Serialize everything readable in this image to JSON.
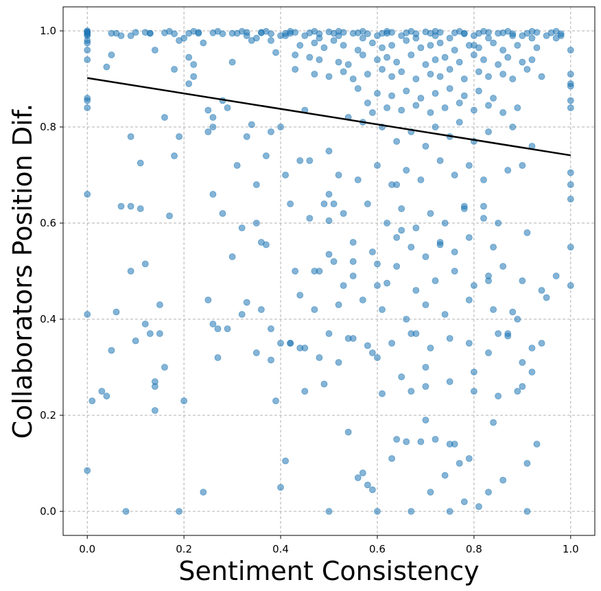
{
  "chart_data": {
    "type": "scatter",
    "title": "",
    "xlabel": "Sentiment Consistency",
    "ylabel": "Collaborators Position Dif.",
    "xlim": [
      -0.05,
      1.05
    ],
    "ylim": [
      -0.05,
      1.05
    ],
    "xticks": [
      "0.0",
      "0.2",
      "0.4",
      "0.6",
      "0.8",
      "1.0"
    ],
    "yticks": [
      "0.0",
      "0.2",
      "0.4",
      "0.6",
      "0.8",
      "1.0"
    ],
    "grid": true,
    "colors": {
      "points": "#1f77b4",
      "trend": "#000000"
    },
    "trend_line": {
      "x": [
        0.0,
        1.0
      ],
      "y": [
        0.902,
        0.741
      ]
    },
    "points_x": [
      0.0,
      0.0,
      0.0,
      0.0,
      0.0,
      0.0,
      0.0,
      0.0,
      0.0,
      0.0,
      0.0,
      0.0,
      0.0,
      0.0,
      0.0,
      0.07,
      0.08,
      0.09,
      0.09,
      0.11,
      0.12,
      0.13,
      0.14,
      0.15,
      0.16,
      0.17,
      0.18,
      0.19,
      0.2,
      0.21,
      0.22,
      0.24,
      0.25,
      0.25,
      0.25,
      0.26,
      0.26,
      0.27,
      0.28,
      0.29,
      0.3,
      0.32,
      0.33,
      0.34,
      0.35,
      0.36,
      0.37,
      0.38,
      0.39,
      0.4,
      0.41,
      0.42,
      0.43,
      0.44,
      0.45,
      0.46,
      0.47,
      0.48,
      0.49,
      0.5,
      0.5,
      0.5,
      0.5,
      0.51,
      0.52,
      0.53,
      0.54,
      0.55,
      0.56,
      0.57,
      0.58,
      0.58,
      0.59,
      0.6,
      0.6,
      0.61,
      0.62,
      0.63,
      0.64,
      0.64,
      0.65,
      0.66,
      0.67,
      0.67,
      0.68,
      0.69,
      0.7,
      0.7,
      0.71,
      0.72,
      0.73,
      0.74,
      0.75,
      0.75,
      0.76,
      0.77,
      0.78,
      0.78,
      0.79,
      0.8,
      0.8,
      0.81,
      0.82,
      0.83,
      0.83,
      0.84,
      0.85,
      0.86,
      0.87,
      0.88,
      0.89,
      0.9,
      0.91,
      0.91,
      0.92,
      0.93,
      0.94,
      0.95,
      1.0,
      1.0,
      1.0,
      1.0,
      1.0,
      1.0,
      1.0,
      1.0,
      1.0,
      1.0,
      1.0,
      0.04,
      0.05,
      0.06,
      0.1,
      0.12,
      0.14,
      0.2,
      0.23,
      0.33,
      0.36,
      0.4,
      0.42,
      0.45,
      0.48,
      0.5,
      0.52,
      0.55,
      0.57,
      0.6,
      0.62,
      0.65,
      0.68,
      0.7,
      0.72,
      0.75,
      0.78,
      0.8,
      0.83,
      0.85,
      0.88,
      0.9,
      0.92,
      0.95,
      0.97,
      0.98,
      0.3,
      0.35,
      0.38,
      0.41,
      0.44,
      0.47,
      0.49,
      0.51,
      0.53,
      0.56,
      0.59,
      0.61,
      0.63,
      0.66,
      0.69,
      0.71,
      0.73,
      0.76,
      0.79,
      0.81,
      0.84,
      0.86,
      0.89,
      0.93,
      0.34,
      0.39,
      0.43,
      0.46,
      0.48,
      0.52,
      0.54,
      0.57,
      0.6,
      0.62,
      0.64,
      0.67,
      0.7,
      0.72,
      0.74,
      0.77,
      0.8,
      0.82,
      0.85,
      0.87,
      0.9,
      0.92,
      0.43,
      0.47,
      0.5,
      0.53,
      0.55,
      0.58,
      0.61,
      0.63,
      0.65,
      0.68,
      0.71,
      0.73,
      0.75,
      0.78,
      0.81,
      0.83,
      0.86,
      0.88,
      0.91,
      0.94,
      0.56,
      0.6,
      0.63,
      0.66,
      0.69,
      0.72,
      0.75,
      0.78,
      0.81,
      0.84,
      0.58,
      0.62,
      0.65,
      0.68,
      0.71,
      0.74,
      0.77,
      0.8,
      0.83,
      0.86,
      0.89,
      0.0,
      0.04,
      0.07,
      0.09,
      0.13,
      0.19,
      0.24,
      0.26,
      0.33,
      0.4,
      0.45,
      0.5,
      0.54,
      0.57,
      0.59,
      0.61,
      0.64,
      0.67,
      0.7,
      0.72,
      0.75,
      0.77,
      0.8,
      0.83,
      0.88,
      0.92,
      0.14,
      0.16,
      0.19,
      0.22,
      0.26,
      0.29,
      0.31,
      0.37,
      0.42,
      0.44,
      0.52,
      0.56,
      0.6,
      0.63,
      0.66,
      0.69,
      0.73,
      0.76,
      0.79,
      0.82,
      0.87,
      0.9,
      0.05,
      0.09,
      0.11,
      0.14,
      0.18,
      0.21,
      0.28,
      0.35,
      0.38,
      0.41,
      0.46,
      0.49,
      0.53,
      0.58,
      0.62,
      0.65,
      0.68,
      0.71,
      0.74,
      0.78,
      0.82,
      0.85,
      0.91,
      0.55,
      0.59,
      0.64,
      0.67,
      0.7,
      0.73,
      0.76,
      0.79,
      0.84,
      0.3,
      0.36,
      0.4,
      0.44,
      0.48,
      0.51,
      0.55,
      0.6,
      0.64,
      0.68,
      0.72,
      0.76,
      0.8,
      0.83,
      0.86,
      0.9,
      0.94,
      0.97,
      0.47,
      0.52,
      0.57,
      0.61,
      0.66,
      0.7,
      0.74,
      0.79,
      0.84,
      0.89,
      0.15,
      0.27,
      0.32,
      0.35,
      0.38,
      0.42,
      0.45,
      0.5,
      0.54,
      0.59,
      0.63,
      0.67,
      0.71,
      0.75,
      0.79,
      0.83,
      0.87,
      0.92,
      0.55,
      0.6,
      0.65,
      0.7,
      0.75,
      0.8,
      0.85,
      0.9,
      0.01,
      0.03,
      0.06,
      0.1,
      0.13,
      0.16,
      0.18,
      0.21,
      0.23,
      0.26,
      0.28,
      0.31,
      0.33,
      0.36,
      0.38,
      0.41,
      0.43,
      0.46,
      0.48,
      0.51,
      0.53,
      0.56,
      0.58,
      0.61,
      0.63,
      0.66,
      0.68,
      0.71,
      0.73,
      0.76,
      0.78,
      0.81,
      0.83,
      0.86,
      0.88,
      0.91,
      0.93,
      0.96,
      0.98,
      0.05,
      0.12,
      0.17,
      0.22,
      0.27,
      0.32,
      0.37,
      0.42,
      0.47,
      0.52,
      0.57,
      0.62,
      0.67,
      0.72,
      0.77,
      0.82,
      0.87,
      0.92,
      0.97
    ],
    "points_y": [
      1.0,
      0.99,
      0.98,
      0.96,
      0.94,
      0.86,
      0.84,
      0.66,
      0.41,
      0.085,
      0.995,
      0.998,
      0.993,
      0.975,
      0.997,
      0.635,
      0.0,
      0.78,
      0.635,
      0.725,
      0.515,
      0.37,
      0.26,
      0.37,
      0.3,
      0.615,
      0.92,
      0.0,
      0.23,
      0.945,
      0.905,
      0.04,
      0.44,
      0.835,
      0.79,
      0.66,
      0.39,
      0.32,
      0.855,
      0.38,
      0.935,
      0.59,
      0.435,
      0.805,
      0.68,
      0.56,
      0.555,
      0.315,
      0.23,
      0.05,
      0.105,
      0.35,
      0.5,
      0.34,
      0.25,
      0.73,
      0.42,
      0.32,
      0.265,
      0.0,
      0.535,
      0.605,
      0.66,
      0.64,
      0.31,
      0.47,
      0.165,
      0.52,
      0.07,
      0.08,
      0.345,
      0.055,
      0.045,
      0.0,
      0.515,
      0.245,
      0.475,
      0.11,
      0.15,
      0.68,
      0.585,
      0.145,
      0.0,
      0.25,
      0.37,
      0.145,
      0.3,
      0.19,
      0.04,
      0.15,
      0.555,
      0.075,
      0.14,
      0.0,
      0.14,
      0.1,
      0.02,
      0.635,
      0.11,
      0.97,
      0.29,
      0.01,
      0.635,
      0.04,
      0.48,
      0.185,
      0.37,
      0.065,
      0.365,
      0.415,
      0.25,
      0.31,
      0.1,
      0.0,
      0.29,
      0.14,
      0.35,
      0.445,
      0.47,
      0.55,
      0.65,
      0.68,
      0.705,
      0.84,
      0.855,
      0.885,
      0.89,
      0.91,
      0.96,
      0.24,
      0.335,
      0.415,
      0.355,
      0.39,
      0.21,
      0.985,
      0.995,
      0.99,
      0.997,
      0.99,
      0.995,
      0.99,
      0.985,
      0.998,
      0.99,
      0.995,
      0.985,
      0.99,
      0.995,
      0.99,
      0.985,
      0.998,
      0.99,
      0.985,
      0.995,
      0.99,
      0.985,
      0.995,
      0.99,
      0.99,
      0.985,
      0.99,
      0.985,
      0.99,
      0.995,
      0.985,
      0.98,
      0.99,
      0.97,
      0.975,
      0.965,
      0.98,
      0.97,
      0.96,
      0.975,
      0.965,
      0.97,
      0.98,
      0.965,
      0.97,
      0.975,
      0.96,
      0.97,
      0.965,
      0.975,
      0.96,
      0.97,
      0.965,
      0.98,
      0.955,
      0.95,
      0.945,
      0.94,
      0.935,
      0.93,
      0.95,
      0.94,
      0.945,
      0.935,
      0.95,
      0.93,
      0.94,
      0.945,
      0.935,
      0.95,
      0.94,
      0.93,
      0.945,
      0.935,
      0.94,
      0.92,
      0.91,
      0.905,
      0.915,
      0.9,
      0.91,
      0.92,
      0.905,
      0.915,
      0.9,
      0.91,
      0.905,
      0.92,
      0.9,
      0.915,
      0.905,
      0.91,
      0.9,
      0.92,
      0.905,
      0.88,
      0.87,
      0.865,
      0.875,
      0.86,
      0.87,
      0.88,
      0.865,
      0.875,
      0.86,
      0.85,
      0.84,
      0.835,
      0.845,
      0.83,
      0.84,
      0.85,
      0.835,
      0.845,
      0.83,
      0.84,
      0.855,
      0.925,
      0.99,
      0.99,
      0.995,
      0.98,
      0.975,
      0.82,
      0.78,
      0.8,
      0.835,
      0.75,
      0.82,
      0.81,
      0.83,
      0.8,
      0.77,
      0.79,
      0.76,
      0.8,
      0.78,
      0.81,
      0.77,
      0.79,
      0.8,
      0.76,
      0.96,
      0.82,
      0.78,
      0.93,
      0.8,
      0.84,
      0.72,
      0.74,
      0.64,
      0.73,
      0.7,
      0.69,
      0.72,
      0.68,
      0.71,
      0.69,
      0.73,
      0.7,
      0.72,
      0.69,
      0.71,
      0.72,
      0.95,
      0.5,
      0.63,
      0.27,
      0.74,
      0.89,
      0.62,
      0.6,
      0.79,
      0.7,
      0.61,
      0.64,
      0.62,
      0.64,
      0.6,
      0.63,
      0.59,
      0.62,
      0.6,
      0.63,
      0.61,
      0.6,
      0.58,
      0.56,
      0.54,
      0.57,
      0.55,
      0.53,
      0.56,
      0.54,
      0.57,
      0.55,
      0.53,
      0.42,
      0.35,
      0.45,
      0.5,
      0.52,
      0.49,
      0.47,
      0.51,
      0.46,
      0.48,
      0.5,
      0.47,
      0.49,
      0.51,
      0.48,
      0.46,
      0.49,
      0.5,
      0.43,
      0.44,
      0.42,
      0.4,
      0.43,
      0.41,
      0.44,
      0.42,
      0.4,
      0.43,
      0.38,
      0.41,
      0.33,
      0.38,
      0.35,
      0.34,
      0.37,
      0.36,
      0.33,
      0.35,
      0.37,
      0.34,
      0.36,
      0.35,
      0.33,
      0.37,
      0.34,
      0.36,
      0.32,
      0.28,
      0.26,
      0.27,
      0.25,
      0.24,
      0.26,
      0.23,
      0.25,
      0.995,
      0.997,
      0.995,
      0.996,
      0.994,
      0.995,
      0.997,
      0.996,
      0.994,
      0.995,
      0.997,
      0.996,
      0.994,
      0.995,
      0.997,
      0.996,
      0.994,
      0.995,
      0.997,
      0.996,
      0.994,
      0.995,
      0.997,
      0.996,
      0.994,
      0.995,
      0.997,
      0.996,
      0.994,
      0.995,
      0.997,
      0.996,
      0.994,
      0.995,
      0.997,
      0.996,
      0.994,
      0.995,
      0.997,
      0.999,
      0.999,
      0.999,
      0.999,
      0.999,
      0.999,
      0.999,
      0.999,
      0.999,
      0.999,
      0.999,
      0.999,
      0.999,
      0.999,
      0.999,
      0.999,
      0.999,
      0.999,
      0.999
    ]
  }
}
